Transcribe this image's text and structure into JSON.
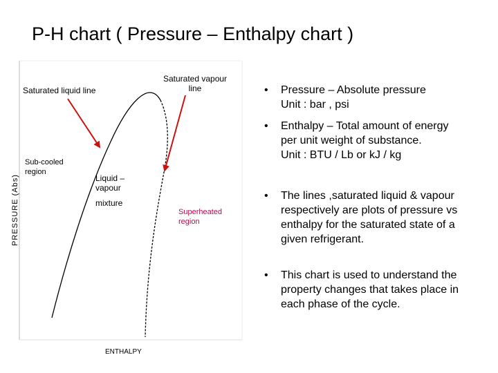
{
  "slide": {
    "title": "P-H chart ( Pressure – Enthalpy chart )"
  },
  "diagram": {
    "labels": {
      "saturated_liquid_line": "Saturated liquid line",
      "saturated_vapour_line": "Saturated vapour line",
      "sub_cooled_region": "Sub-cooled region",
      "liquid_vapour": "Liquid – vapour",
      "mixture": "mixture",
      "superheated_region": "Superheated region",
      "y_axis": "PRESSURE (Abs)",
      "x_axis": "ENTHALPY"
    },
    "colors": {
      "arrow": "#cc1111",
      "superheated_text": "#b01050"
    }
  },
  "bullets": [
    {
      "lines": [
        "Pressure – Absolute pressure",
        "Unit : bar , psi"
      ]
    },
    {
      "lines": [
        "Enthalpy – Total amount of energy",
        "per unit weight of substance.",
        "Unit : BTU / Lb  or kJ / kg"
      ]
    },
    {
      "lines": [
        "The lines ,saturated liquid & vapour",
        "respectively are plots of pressure vs",
        "enthalpy for the saturated state of a",
        "given refrigerant."
      ]
    },
    {
      "lines": [
        "This chart is used to understand the",
        "property changes that takes place in",
        "each phase of the cycle."
      ]
    }
  ]
}
